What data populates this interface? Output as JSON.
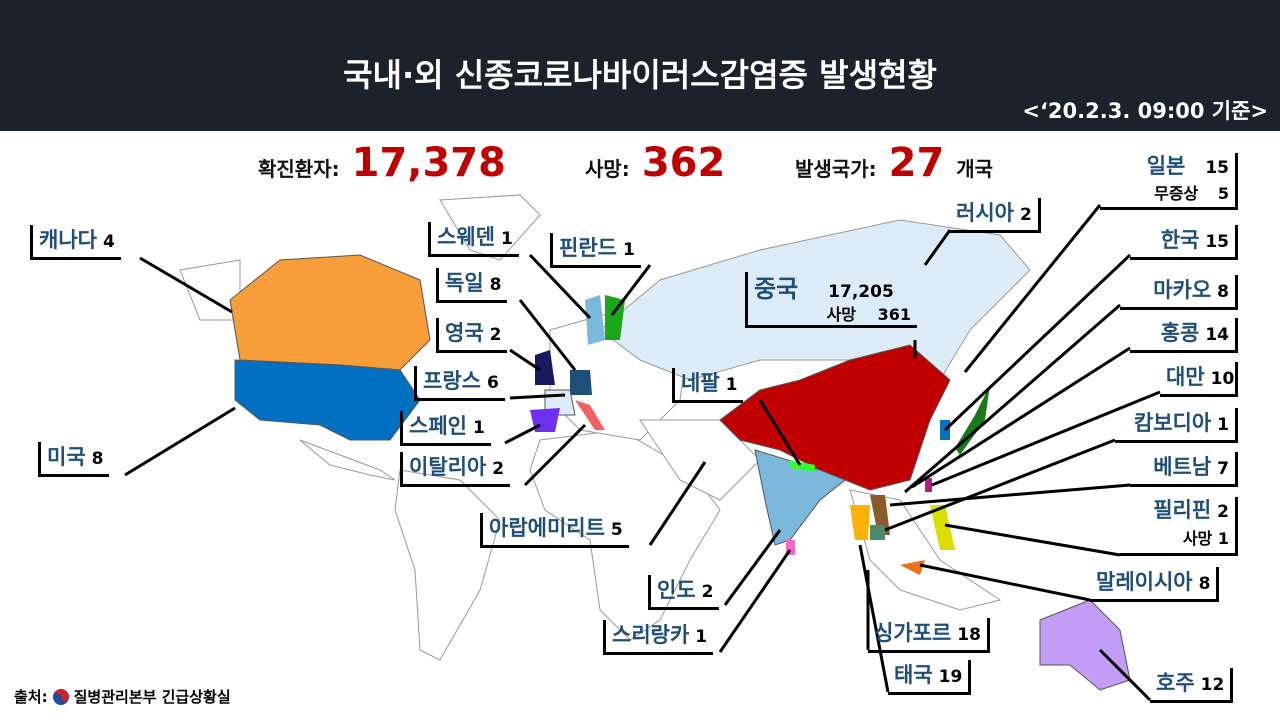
{
  "header": {
    "title": "국내·외 신종코로나바이러스감염증 발생현황",
    "date": "<‘20.2.3. 09:00 기준>"
  },
  "stats": {
    "confirmed_label": "확진환자:",
    "confirmed": "17,378",
    "deaths_label": "사망:",
    "deaths": "362",
    "countries_label": "발생국가:",
    "countries": "27",
    "countries_unit": "개국"
  },
  "countries": {
    "canada": {
      "name": "캐나다",
      "count": "4"
    },
    "usa": {
      "name": "미국",
      "count": "8"
    },
    "sweden": {
      "name": "스웨덴",
      "count": "1"
    },
    "germany": {
      "name": "독일",
      "count": "8"
    },
    "uk": {
      "name": "영국",
      "count": "2"
    },
    "france": {
      "name": "프랑스",
      "count": "6"
    },
    "spain": {
      "name": "스페인",
      "count": "1"
    },
    "italy": {
      "name": "이탈리아",
      "count": "2"
    },
    "uae": {
      "name": "아랍에미리트",
      "count": "5"
    },
    "finland": {
      "name": "핀란드",
      "count": "1"
    },
    "russia": {
      "name": "러시아",
      "count": "2"
    },
    "china": {
      "name": "중국",
      "count": "17,205",
      "death_label": "사망",
      "deaths": "361"
    },
    "nepal": {
      "name": "네팔",
      "count": "1"
    },
    "india": {
      "name": "인도",
      "count": "2"
    },
    "srilanka": {
      "name": "스리랑카",
      "count": "1"
    },
    "singapore": {
      "name": "싱가포르",
      "count": "18"
    },
    "thailand": {
      "name": "태국",
      "count": "19"
    },
    "australia": {
      "name": "호주",
      "count": "12"
    },
    "malaysia": {
      "name": "말레이시아",
      "count": "8"
    },
    "philippines": {
      "name": "필리핀",
      "count": "2",
      "death_label": "사망",
      "deaths": "1"
    },
    "vietnam": {
      "name": "베트남",
      "count": "7"
    },
    "cambodia": {
      "name": "캄보디아",
      "count": "1"
    },
    "taiwan": {
      "name": "대만",
      "count": "10"
    },
    "hongkong": {
      "name": "홍콩",
      "count": "14"
    },
    "macau": {
      "name": "마카오",
      "count": "8"
    },
    "korea": {
      "name": "한국",
      "count": "15"
    },
    "japan": {
      "name": "일본",
      "count": "15",
      "asymptomatic_label": "무증상",
      "asymptomatic": "5"
    }
  },
  "source": {
    "label": "출처:",
    "org": "질병관리본부 긴급상황실"
  },
  "colors": {
    "header": "#1b222b",
    "highlight": "#c00000",
    "name": "#1f4e79",
    "china": "#c00000",
    "canada": "#f79e3b",
    "usa": "#0070c0",
    "russia": "#ddebf7",
    "india": "#7ab8dc",
    "australia": "#c39cf5"
  }
}
